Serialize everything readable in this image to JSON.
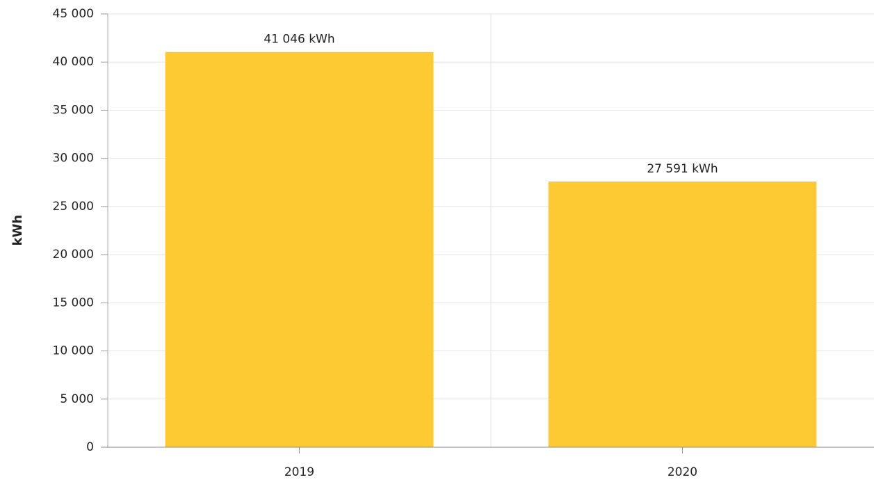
{
  "chart_data": {
    "type": "bar",
    "y_label": "kWh",
    "categories": [
      "2019",
      "2020"
    ],
    "values": [
      41046,
      27591
    ],
    "value_labels": [
      "41 046 kWh",
      "27 591 kWh"
    ],
    "color": "#fdca33",
    "ylim": [
      0,
      45000
    ],
    "yticks": [
      0,
      {
        "value": 5000,
        "label": "5 000"
      },
      {
        "value": 10000,
        "label": "10 000"
      },
      {
        "value": 15000,
        "label": "15 000"
      },
      {
        "value": 20000,
        "label": "20 000"
      },
      {
        "value": 25000,
        "label": "25 000"
      },
      {
        "value": 30000,
        "label": "30 000"
      },
      {
        "value": 35000,
        "label": "35 000"
      },
      {
        "value": 40000,
        "label": "40 000"
      },
      {
        "value": 45000,
        "label": "45 000"
      }
    ],
    "grid": true
  }
}
